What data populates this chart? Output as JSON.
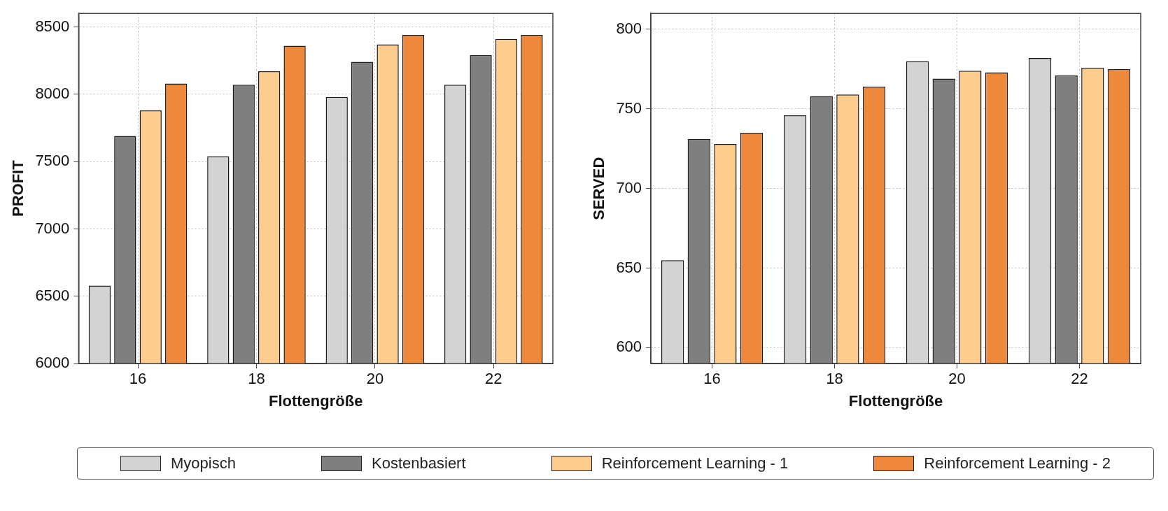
{
  "chart_data": [
    {
      "type": "bar",
      "xlabel": "Flottengröße",
      "ylabel": "PROFIT",
      "categories": [
        "16",
        "18",
        "20",
        "22"
      ],
      "ylim": [
        6000,
        8600
      ],
      "yticks": [
        6000,
        6500,
        7000,
        7500,
        8000,
        8500
      ],
      "grid": true,
      "legend": "bottom",
      "series": [
        {
          "name": "Myopisch",
          "color": "#d3d3d3",
          "values": [
            6580,
            7540,
            7980,
            8070
          ]
        },
        {
          "name": "Kostenbasiert",
          "color": "#7f7f7f",
          "values": [
            7690,
            8070,
            8240,
            8290
          ]
        },
        {
          "name": "Reinforcement Learning - 1",
          "color": "#fdcd8f",
          "values": [
            7880,
            8170,
            8370,
            8410
          ]
        },
        {
          "name": "Reinforcement Learning - 2",
          "color": "#ee883a",
          "values": [
            8080,
            8360,
            8440,
            8440
          ]
        }
      ]
    },
    {
      "type": "bar",
      "xlabel": "Flottengröße",
      "ylabel": "SERVED",
      "categories": [
        "16",
        "18",
        "20",
        "22"
      ],
      "ylim": [
        590,
        810
      ],
      "yticks": [
        600,
        650,
        700,
        750,
        800
      ],
      "grid": true,
      "series": [
        {
          "color": "#d3d3d3",
          "values": [
            655,
            746,
            780,
            782
          ]
        },
        {
          "color": "#7f7f7f",
          "values": [
            731,
            758,
            769,
            771
          ]
        },
        {
          "color": "#fdcd8f",
          "values": [
            728,
            759,
            774,
            776
          ]
        },
        {
          "color": "#ee883a",
          "values": [
            735,
            764,
            773,
            775
          ]
        }
      ]
    }
  ]
}
